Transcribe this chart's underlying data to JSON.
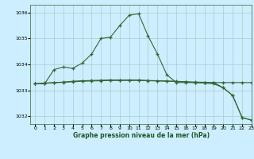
{
  "title": "Graphe pression niveau de la mer (hPa)",
  "background_color": "#cceeff",
  "grid_color": "#aacccc",
  "line_color": "#336633",
  "xlim": [
    -0.5,
    23
  ],
  "ylim": [
    1031.7,
    1036.3
  ],
  "yticks": [
    1032,
    1033,
    1034,
    1035,
    1036
  ],
  "xticks": [
    0,
    1,
    2,
    3,
    4,
    5,
    6,
    7,
    8,
    9,
    10,
    11,
    12,
    13,
    14,
    15,
    16,
    17,
    18,
    19,
    20,
    21,
    22,
    23
  ],
  "series1_x": [
    0,
    1,
    2,
    3,
    4,
    5,
    6,
    7,
    8,
    9,
    10,
    11,
    12,
    13,
    14,
    15,
    16,
    17,
    18,
    19,
    20,
    21,
    22,
    23
  ],
  "series1_y": [
    1033.25,
    1033.25,
    1033.8,
    1033.9,
    1033.85,
    1034.05,
    1034.4,
    1035.0,
    1035.05,
    1035.5,
    1035.9,
    1035.95,
    1035.1,
    1034.4,
    1033.6,
    1033.3,
    1033.3,
    1033.3,
    1033.3,
    1033.3,
    1033.3,
    1033.3,
    1033.3,
    1033.3
  ],
  "series2_x": [
    0,
    1,
    2,
    3,
    4,
    5,
    6,
    7,
    8,
    9,
    10,
    11,
    12,
    13,
    14,
    15,
    16,
    17,
    18,
    19,
    20,
    21,
    22,
    23
  ],
  "series2_y": [
    1033.25,
    1033.28,
    1033.3,
    1033.32,
    1033.35,
    1033.37,
    1033.38,
    1033.39,
    1033.4,
    1033.4,
    1033.4,
    1033.4,
    1033.38,
    1033.37,
    1033.36,
    1033.35,
    1033.33,
    1033.3,
    1033.28,
    1033.25,
    1033.1,
    1032.8,
    1031.95,
    1031.85
  ],
  "series3_x": [
    0,
    1,
    2,
    3,
    4,
    5,
    6,
    7,
    8,
    9,
    10,
    11,
    12,
    13,
    14,
    15,
    16,
    17,
    18,
    19,
    20,
    21,
    22,
    23
  ],
  "series3_y": [
    1033.25,
    1033.27,
    1033.29,
    1033.31,
    1033.33,
    1033.35,
    1033.36,
    1033.37,
    1033.38,
    1033.38,
    1033.38,
    1033.38,
    1033.37,
    1033.36,
    1033.35,
    1033.34,
    1033.33,
    1033.32,
    1033.31,
    1033.3,
    1033.1,
    1032.8,
    1031.95,
    1031.85
  ]
}
